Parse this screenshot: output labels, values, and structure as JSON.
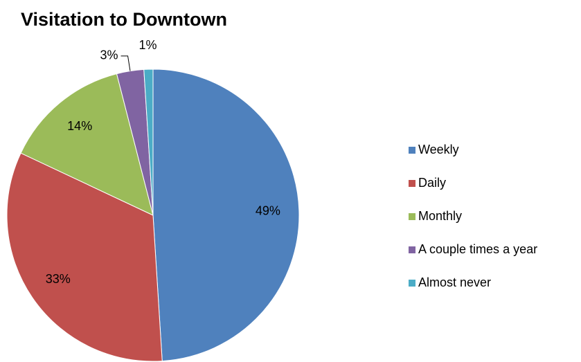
{
  "chart_data": {
    "type": "pie",
    "title": "Visitation to Downtown",
    "categories": [
      "Weekly",
      "Daily",
      "Monthly",
      "A couple times a year",
      "Almost never"
    ],
    "values": [
      49,
      33,
      14,
      3,
      1
    ],
    "value_labels": [
      "49%",
      "33%",
      "14%",
      "3%",
      "1%"
    ],
    "colors": [
      "#4f81bd",
      "#c0504d",
      "#9bbb59",
      "#8064a2",
      "#4bacc6"
    ],
    "legend": "right"
  }
}
